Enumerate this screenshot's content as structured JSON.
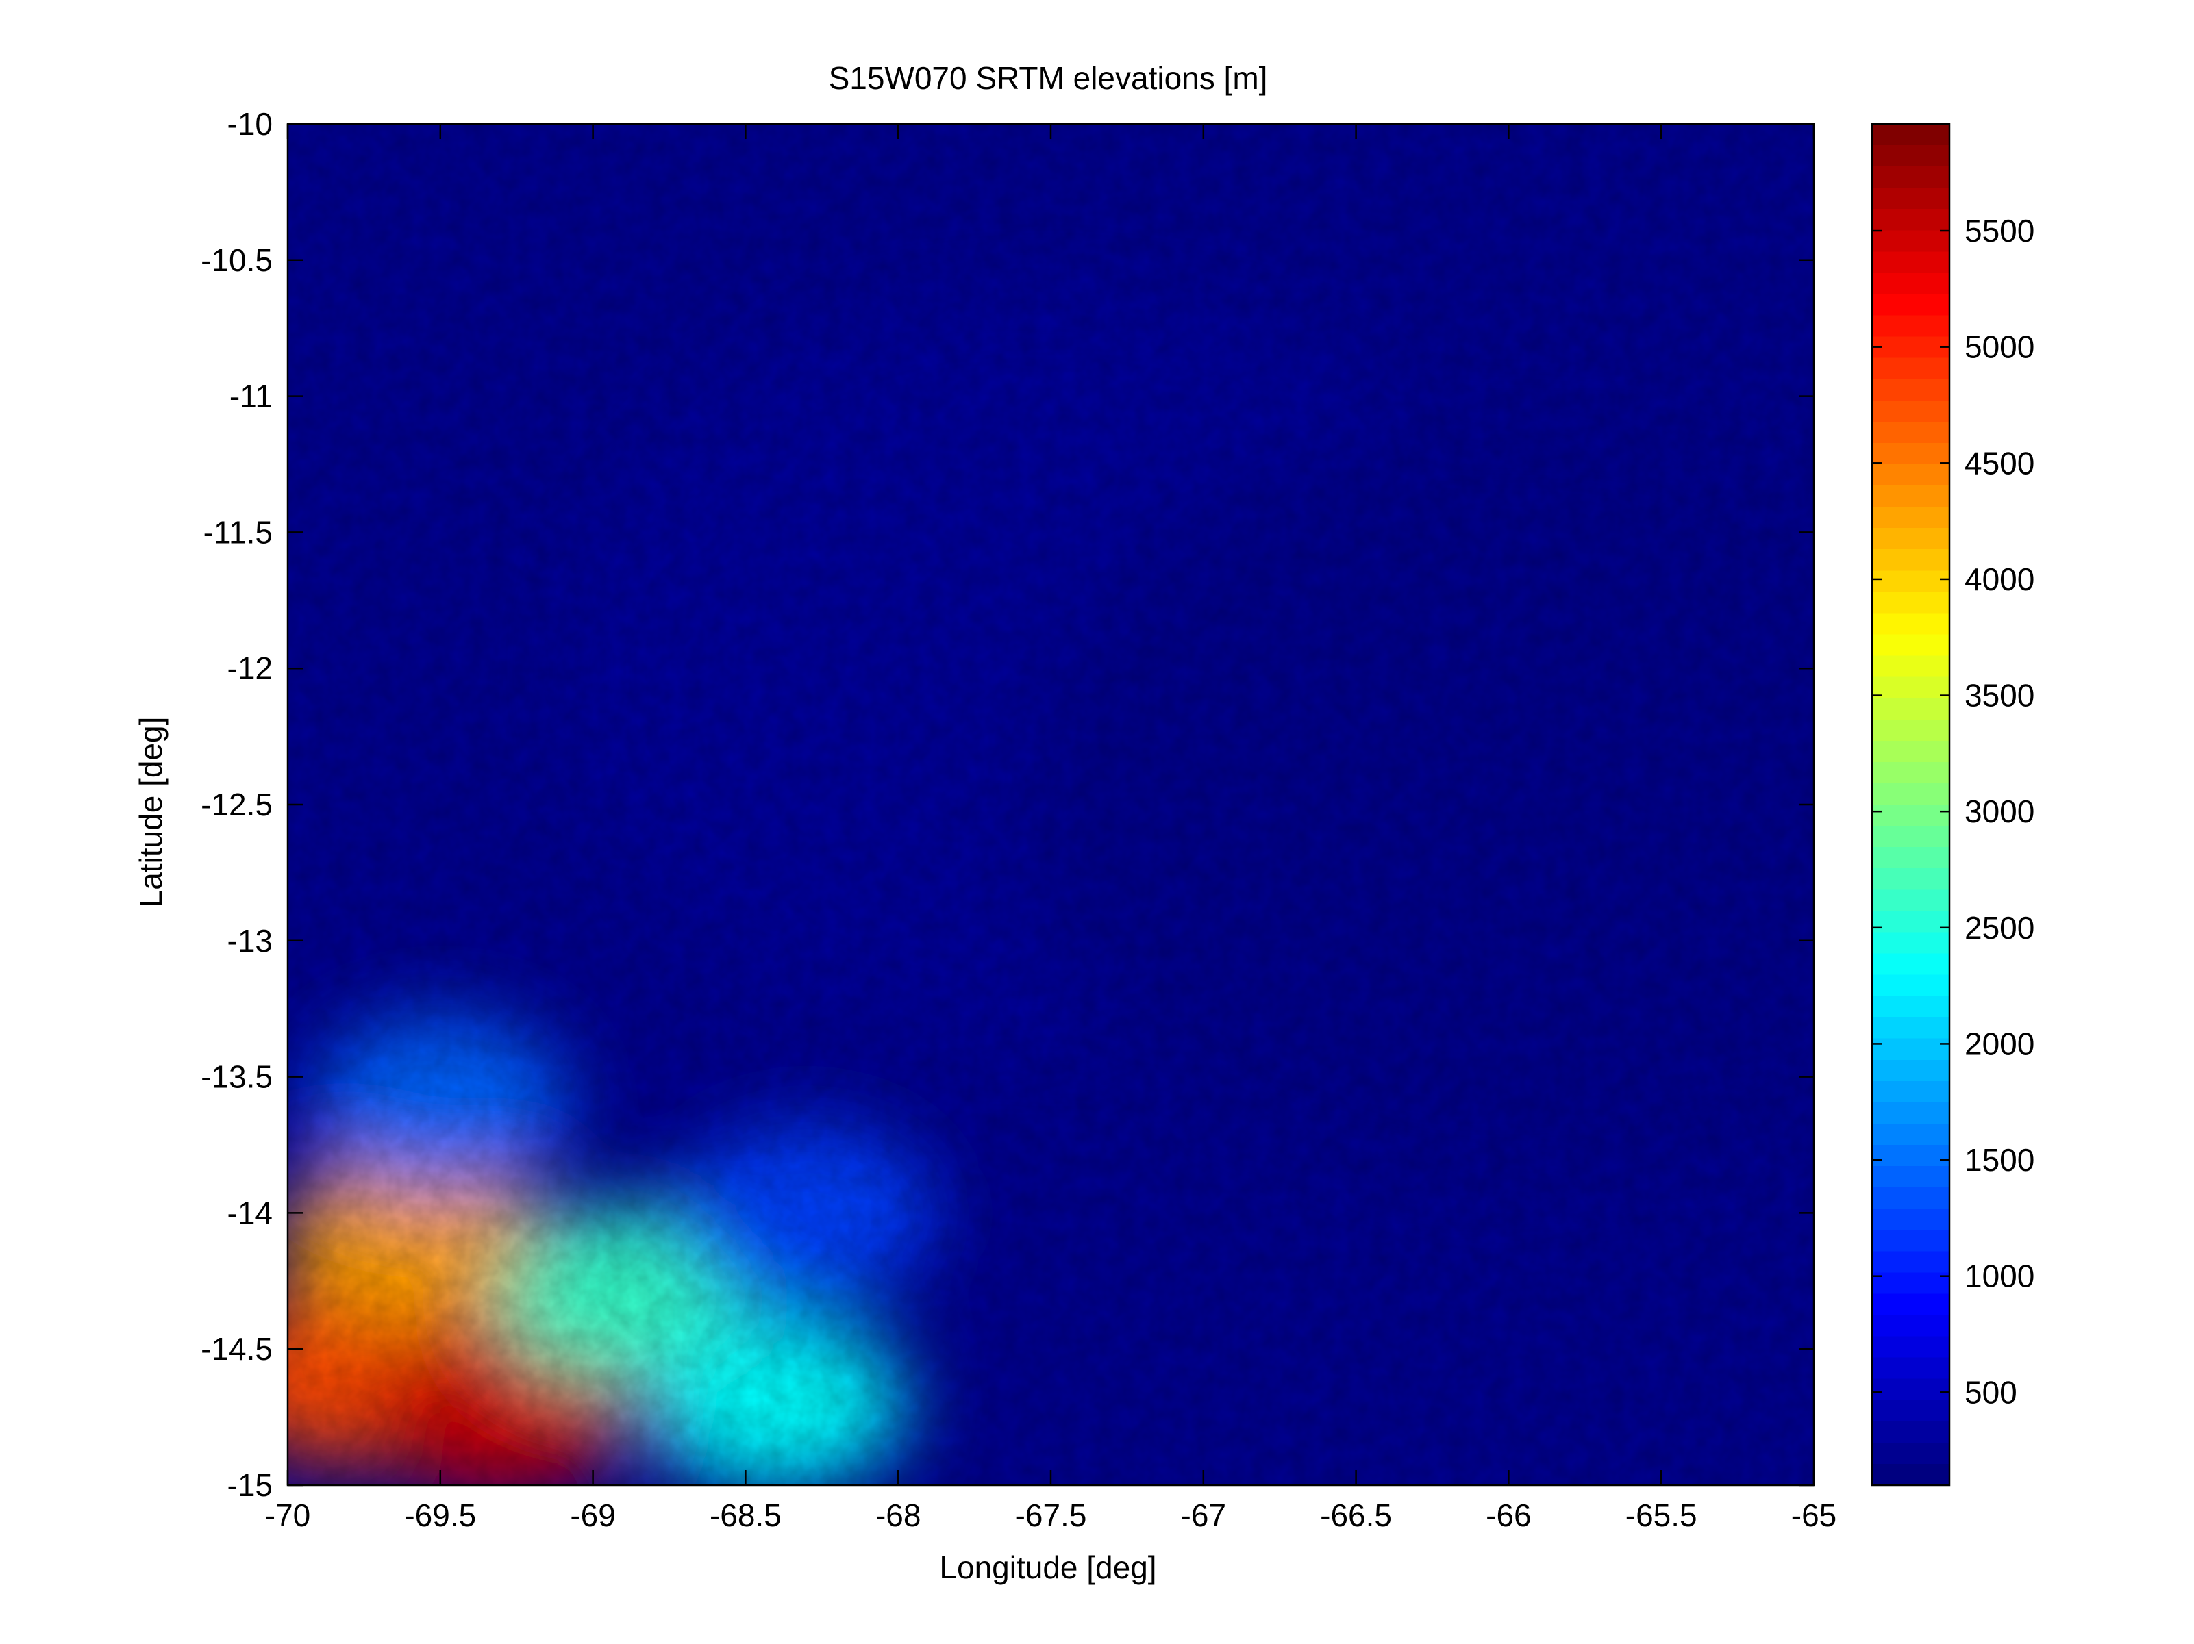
{
  "chart_data": {
    "type": "heatmap",
    "title": "S15W070 SRTM elevations [m]",
    "xlabel": "Longitude [deg]",
    "ylabel": "Latitude [deg]",
    "xlim": [
      -70,
      -65
    ],
    "ylim": [
      -15,
      -10
    ],
    "xticks": [
      -70,
      -69.5,
      -69,
      -68.5,
      -68,
      -67.5,
      -67,
      -66.5,
      -66,
      -65.5,
      -65
    ],
    "xtick_labels": [
      "-70",
      "-69.5",
      "-69",
      "-68.5",
      "-68",
      "-67.5",
      "-67",
      "-66.5",
      "-66",
      "-65.5",
      "-65"
    ],
    "yticks": [
      -10,
      -10.5,
      -11,
      -11.5,
      -12,
      -12.5,
      -13,
      -13.5,
      -14,
      -14.5,
      -15
    ],
    "ytick_labels": [
      "-10",
      "-10.5",
      "-11",
      "-11.5",
      "-12",
      "-12.5",
      "-13",
      "-13.5",
      "-14",
      "-14.5",
      "-15"
    ],
    "colormap": "jet",
    "colorbar": {
      "range": [
        100,
        5960
      ],
      "ticks": [
        500,
        1000,
        1500,
        2000,
        2500,
        3000,
        3500,
        4000,
        4500,
        5000,
        5500
      ],
      "tick_labels": [
        "500",
        "1000",
        "1500",
        "2000",
        "2500",
        "3000",
        "3500",
        "4000",
        "4500",
        "5000",
        "5500"
      ]
    },
    "regions": [
      {
        "lon": -69.8,
        "lat": -14.6,
        "elevation": 4800
      },
      {
        "lon": -69.3,
        "lat": -14.7,
        "elevation": 5500
      },
      {
        "lon": -69.6,
        "lat": -14.1,
        "elevation": 4300
      },
      {
        "lon": -68.9,
        "lat": -14.3,
        "elevation": 2600
      },
      {
        "lon": -68.4,
        "lat": -14.7,
        "elevation": 2300
      },
      {
        "lon": -69.5,
        "lat": -13.6,
        "elevation": 1400
      },
      {
        "lon": -68.3,
        "lat": -14.0,
        "elevation": 1200
      },
      {
        "lon": -67.5,
        "lat": -12.0,
        "elevation": 250
      },
      {
        "lon": -66.0,
        "lat": -12.5,
        "elevation": 180
      }
    ],
    "grid": false
  }
}
